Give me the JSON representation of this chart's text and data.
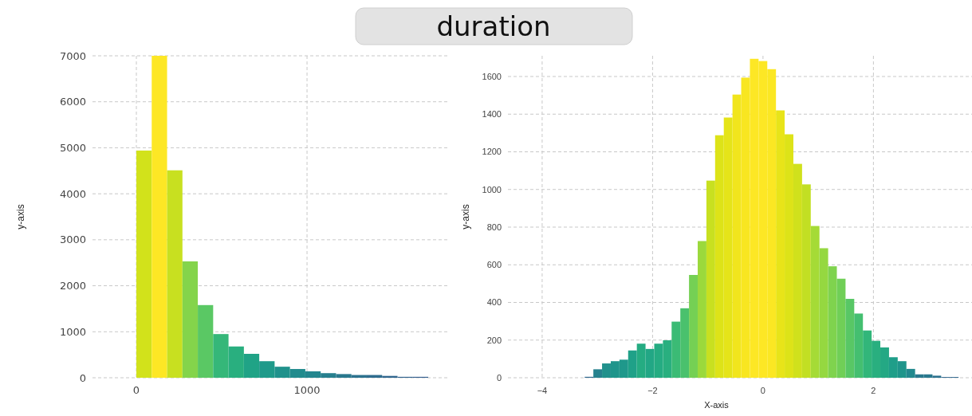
{
  "chart_data": [
    {
      "type": "histogram",
      "title": "duration",
      "ylabel": "y-axis",
      "bins": [
        0,
        90,
        180,
        270,
        360,
        450,
        540,
        630,
        720,
        810,
        900,
        990,
        1080,
        1170,
        1260,
        1350,
        1440,
        1530,
        1620,
        1710
      ],
      "values": [
        4940,
        7000,
        4510,
        2530,
        1580,
        950,
        680,
        520,
        360,
        240,
        190,
        140,
        100,
        80,
        60,
        60,
        40,
        20,
        20
      ],
      "colors": [
        "#d2e21b",
        "#fde725",
        "#c8e020",
        "#84d44b",
        "#5ac864",
        "#35b779",
        "#29af7f",
        "#20a386",
        "#1f9a8a",
        "#20928c",
        "#228b8d",
        "#24868e",
        "#277f8e",
        "#2a788e",
        "#2c728e",
        "#2f6c8e",
        "#31668e",
        "#33638d",
        "#355f8d"
      ],
      "xlim": [
        -257,
        1822
      ],
      "xticks": [
        0,
        1000
      ],
      "ylim": [
        0,
        7000
      ],
      "yticks": [
        0,
        1000,
        2000,
        3000,
        4000,
        5000,
        6000,
        7000
      ],
      "grid": true
    },
    {
      "type": "histogram",
      "xlabel": "X-axis",
      "ylabel": "y-axis",
      "bins": [
        -3.23,
        -3.0725,
        -2.915,
        -2.7575,
        -2.6,
        -2.4425,
        -2.285,
        -2.1275,
        -1.97,
        -1.8125,
        -1.655,
        -1.4975,
        -1.34,
        -1.1825,
        -1.025,
        -0.8675,
        -0.71,
        -0.5525,
        -0.395,
        -0.2375,
        -0.08,
        0.0775,
        0.235,
        0.3925,
        0.55,
        0.7075,
        0.865,
        1.0225,
        1.18,
        1.3375,
        1.495,
        1.6525,
        1.81,
        1.9675,
        2.125,
        2.2825,
        2.44,
        2.5975,
        2.755,
        2.9125,
        3.07,
        3.2275,
        3.385,
        3.5425
      ],
      "values": [
        5,
        45,
        76,
        88,
        96,
        145,
        181,
        153,
        181,
        199,
        298,
        369,
        546,
        726,
        1047,
        1288,
        1382,
        1504,
        1594,
        1694,
        1682,
        1639,
        1420,
        1293,
        1136,
        1027,
        806,
        688,
        592,
        526,
        419,
        341,
        251,
        196,
        161,
        109,
        88,
        47,
        18,
        18,
        11,
        4,
        4
      ],
      "colors": [
        "#31688e",
        "#26828e",
        "#21918c",
        "#1f958b",
        "#1f988b",
        "#1fa188",
        "#25ac82",
        "#22a785",
        "#25ac82",
        "#29af7f",
        "#3bbb75",
        "#4ac16d",
        "#75d054",
        "#9bd93c",
        "#c8e020",
        "#dde318",
        "#e5e419",
        "#f1e51d",
        "#f8e621",
        "#fde725",
        "#fde725",
        "#fbe723",
        "#e8e419",
        "#dde318",
        "#d0e11c",
        "#c2df23",
        "#a5db36",
        "#95d840",
        "#7fd34e",
        "#70cf57",
        "#58c765",
        "#44bf70",
        "#32b67a",
        "#29af7f",
        "#24a884",
        "#1f9e89",
        "#1f958b",
        "#23898e",
        "#2a788e",
        "#2a788e",
        "#2c728e",
        "#31688e",
        "#31688e"
      ],
      "xlim": [
        -4.62,
        3.8
      ],
      "xticks": [
        {
          "value": -4,
          "label": "−4"
        },
        {
          "value": -2,
          "label": "−2"
        },
        0,
        2
      ],
      "ylim": [
        0,
        1710
      ],
      "yticks": [
        0,
        200,
        400,
        600,
        800,
        1000,
        1200,
        1400,
        1600
      ],
      "grid": true
    }
  ]
}
